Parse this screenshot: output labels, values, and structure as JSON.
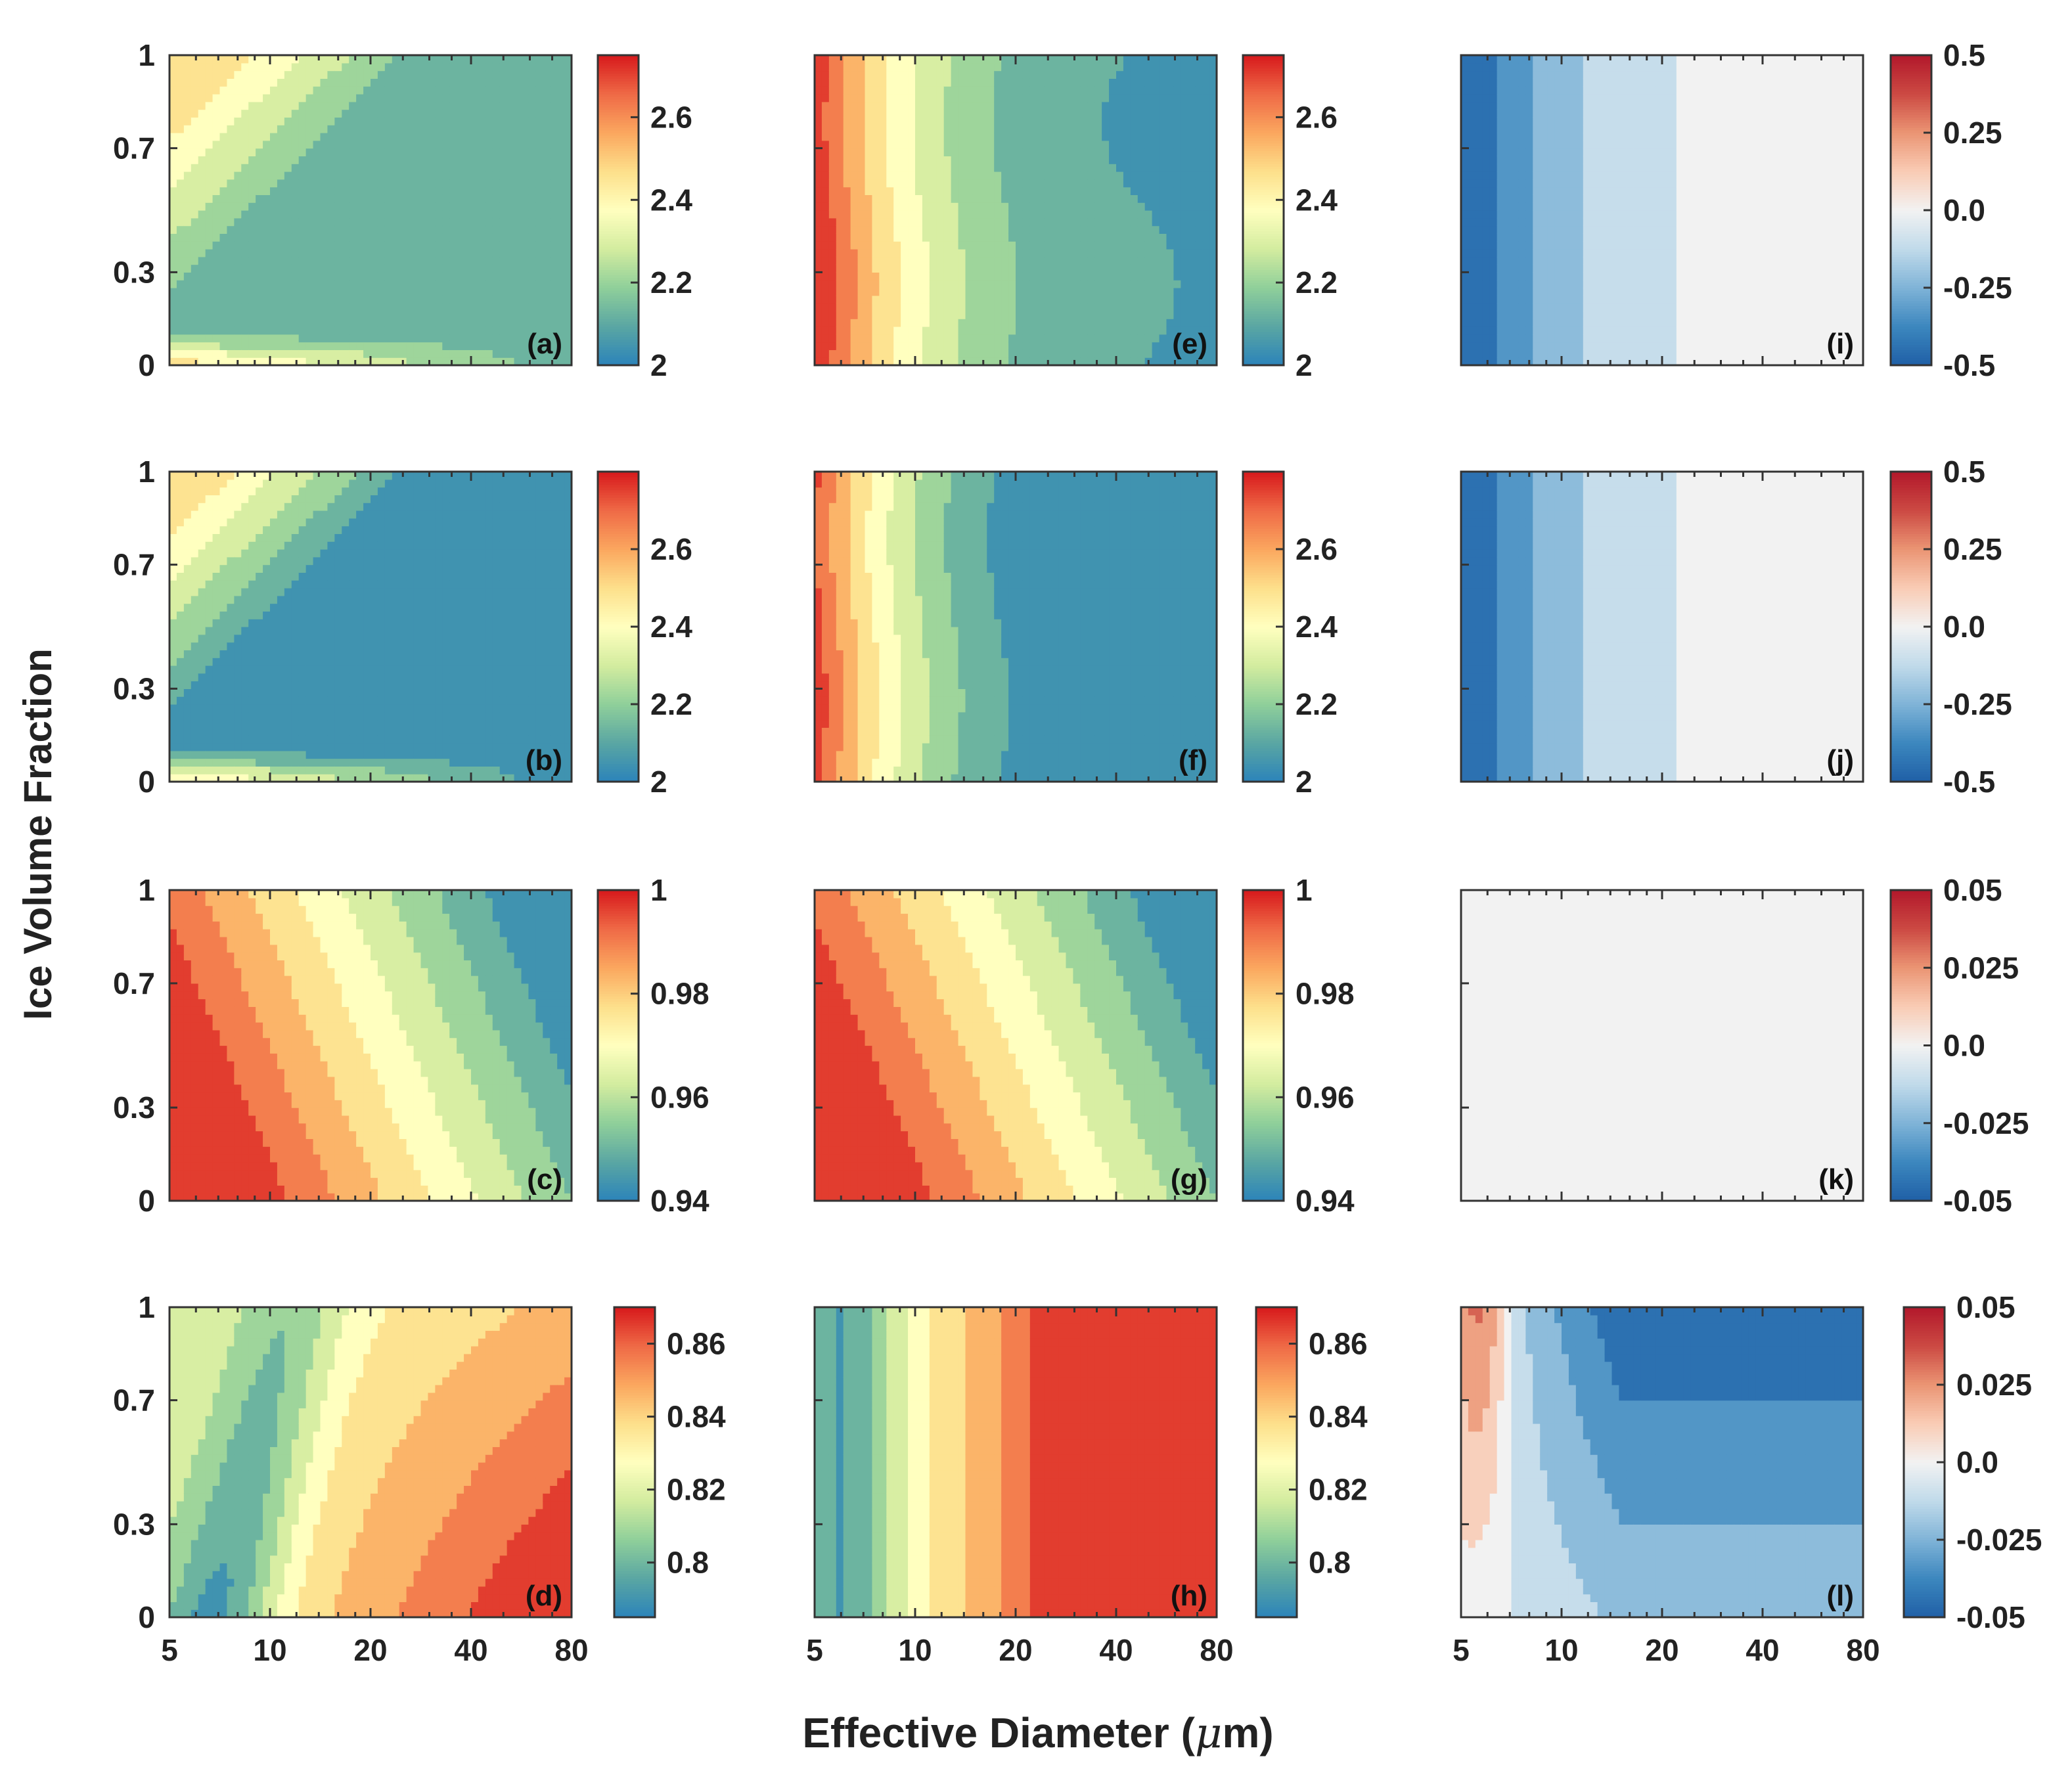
{
  "figure": {
    "ylabel": "Ice Volume Fraction",
    "xlabel_main": "Effective Diameter (",
    "xlabel_mu": "μ",
    "xlabel_unit": "m)",
    "x_ticks": [
      "5",
      "10",
      "20",
      "40",
      "80"
    ],
    "y_ticks": [
      "0",
      "0.3",
      "0.7",
      "1"
    ]
  },
  "colormaps": {
    "spectral": [
      "#2b83ba",
      "#5aa6a3",
      "#8fcf9a",
      "#d3ec9f",
      "#ffffbf",
      "#fde08b",
      "#fba75f",
      "#ef6a46",
      "#d7191c"
    ],
    "diverging": [
      "#1f5fa6",
      "#3c87be",
      "#7fb3d7",
      "#c0daea",
      "#f2f2f2",
      "#f9ccb5",
      "#eb9574",
      "#cc4a43",
      "#b2182b"
    ]
  },
  "chart_data": [
    {
      "type": "heatmap",
      "label": "(a)",
      "row": 0,
      "col": 0,
      "cmap": "spectral",
      "vmin": 2.0,
      "vmax": 2.75,
      "cbar_ticks": [
        "2",
        "2.2",
        "2.4",
        "2.6"
      ],
      "cbar_values": [
        2.0,
        2.2,
        2.4,
        2.6
      ],
      "field": {
        "kind": "a",
        "base": 2.12,
        "edge": 2.45
      }
    },
    {
      "type": "heatmap",
      "label": "(b)",
      "row": 1,
      "col": 0,
      "cmap": "spectral",
      "vmin": 2.0,
      "vmax": 2.8,
      "cbar_ticks": [
        "2",
        "2.2",
        "2.4",
        "2.6"
      ],
      "cbar_values": [
        2.0,
        2.2,
        2.4,
        2.6
      ],
      "field": {
        "kind": "a",
        "base": 2.03,
        "edge": 2.45
      }
    },
    {
      "type": "heatmap",
      "label": "(c)",
      "row": 2,
      "col": 0,
      "cmap": "spectral",
      "vmin": 0.94,
      "vmax": 1.0,
      "cbar_ticks": [
        "0.94",
        "0.96",
        "0.98",
        "1"
      ],
      "cbar_values": [
        0.94,
        0.96,
        0.98,
        1.0
      ],
      "field": {
        "kind": "c",
        "tilt": 0.33
      }
    },
    {
      "type": "heatmap",
      "label": "(d)",
      "row": 3,
      "col": 0,
      "cmap": "spectral",
      "vmin": 0.785,
      "vmax": 0.87,
      "cbar_ticks": [
        "0.8",
        "0.82",
        "0.84",
        "0.86"
      ],
      "cbar_values": [
        0.8,
        0.82,
        0.84,
        0.86
      ],
      "field": {
        "kind": "d"
      }
    },
    {
      "type": "heatmap",
      "label": "(e)",
      "row": 0,
      "col": 1,
      "cmap": "spectral",
      "vmin": 2.0,
      "vmax": 2.75,
      "cbar_ticks": [
        "2",
        "2.2",
        "2.4",
        "2.6"
      ],
      "cbar_values": [
        2.0,
        2.2,
        2.4,
        2.6
      ],
      "field": {
        "kind": "e",
        "far": 2.08
      }
    },
    {
      "type": "heatmap",
      "label": "(f)",
      "row": 1,
      "col": 1,
      "cmap": "spectral",
      "vmin": 2.0,
      "vmax": 2.8,
      "cbar_ticks": [
        "2",
        "2.2",
        "2.4",
        "2.6"
      ],
      "cbar_values": [
        2.0,
        2.2,
        2.4,
        2.6
      ],
      "field": {
        "kind": "e",
        "far": 1.98
      }
    },
    {
      "type": "heatmap",
      "label": "(g)",
      "row": 2,
      "col": 1,
      "cmap": "spectral",
      "vmin": 0.94,
      "vmax": 1.0,
      "cbar_ticks": [
        "0.94",
        "0.96",
        "0.98",
        "1"
      ],
      "cbar_values": [
        0.94,
        0.96,
        0.98,
        1.0
      ],
      "field": {
        "kind": "c",
        "tilt": 0.33
      }
    },
    {
      "type": "heatmap",
      "label": "(h)",
      "row": 3,
      "col": 1,
      "cmap": "spectral",
      "vmin": 0.785,
      "vmax": 0.87,
      "cbar_ticks": [
        "0.8",
        "0.82",
        "0.84",
        "0.86"
      ],
      "cbar_values": [
        0.8,
        0.82,
        0.84,
        0.86
      ],
      "field": {
        "kind": "h"
      }
    },
    {
      "type": "heatmap",
      "label": "(i)",
      "row": 0,
      "col": 2,
      "cmap": "diverging",
      "vmin": -0.5,
      "vmax": 0.5,
      "cbar_ticks": [
        "-0.5",
        "-0.25",
        "0.0",
        "0.25",
        "0.5"
      ],
      "cbar_values": [
        -0.5,
        -0.25,
        0.0,
        0.25,
        0.5
      ],
      "field": {
        "kind": "i"
      }
    },
    {
      "type": "heatmap",
      "label": "(j)",
      "row": 1,
      "col": 2,
      "cmap": "diverging",
      "vmin": -0.5,
      "vmax": 0.5,
      "cbar_ticks": [
        "-0.5",
        "-0.25",
        "0.0",
        "0.25",
        "0.5"
      ],
      "cbar_values": [
        -0.5,
        -0.25,
        0.0,
        0.25,
        0.5
      ],
      "field": {
        "kind": "i"
      }
    },
    {
      "type": "heatmap",
      "label": "(k)",
      "row": 2,
      "col": 2,
      "cmap": "diverging",
      "vmin": -0.05,
      "vmax": 0.05,
      "cbar_ticks": [
        "-0.05",
        "-0.025",
        "0.0",
        "0.025",
        "0.05"
      ],
      "cbar_values": [
        -0.05,
        -0.025,
        0.0,
        0.025,
        0.05
      ],
      "field": {
        "kind": "k"
      }
    },
    {
      "type": "heatmap",
      "label": "(l)",
      "row": 3,
      "col": 2,
      "cmap": "diverging",
      "vmin": -0.05,
      "vmax": 0.05,
      "cbar_ticks": [
        "-0.05",
        "-0.025",
        "0.0",
        "0.025",
        "0.05"
      ],
      "cbar_values": [
        -0.05,
        -0.025,
        0.0,
        0.025,
        0.05
      ],
      "field": {
        "kind": "l"
      }
    }
  ]
}
